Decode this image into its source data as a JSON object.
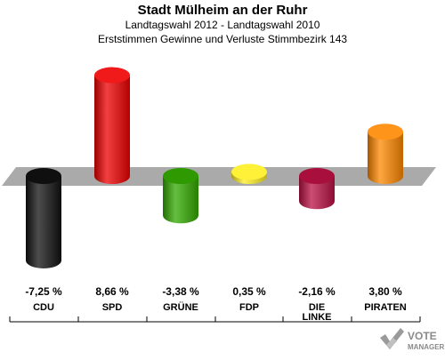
{
  "header": {
    "title": "Stadt Mülheim an der Ruhr",
    "subtitle": "Landtagswahl 2012 - Landtagswahl 2010",
    "subtitle2": "Erststimmen Gewinne und Verluste Stimmbezirk 143"
  },
  "chart_data": {
    "type": "bar",
    "title": "Stadt Mülheim an der Ruhr",
    "subtitle": "Landtagswahl 2012 - Landtagswahl 2010 / Erststimmen Gewinne und Verluste Stimmbezirk 143",
    "categories": [
      [
        "CDU"
      ],
      [
        "SPD"
      ],
      [
        "GRÜNE"
      ],
      [
        "FDP"
      ],
      [
        "DIE",
        "LINKE"
      ],
      [
        "PIRATEN"
      ]
    ],
    "values": [
      -7.25,
      8.66,
      -3.38,
      0.35,
      -2.16,
      3.8
    ],
    "value_labels": [
      "-7,25 %",
      "8,66 %",
      "-3,38 %",
      "0,35 %",
      "-2,16 %",
      "3,80 %"
    ],
    "colors": [
      "#111111",
      "#ee0000",
      "#33aa00",
      "#ffee22",
      "#bb1144",
      "#ff8800"
    ],
    "ylim": [
      -8,
      9.5
    ],
    "grid": false,
    "legend": "none"
  },
  "logo": {
    "text_line1": "VOTE",
    "text_line2": "MANAGER"
  }
}
